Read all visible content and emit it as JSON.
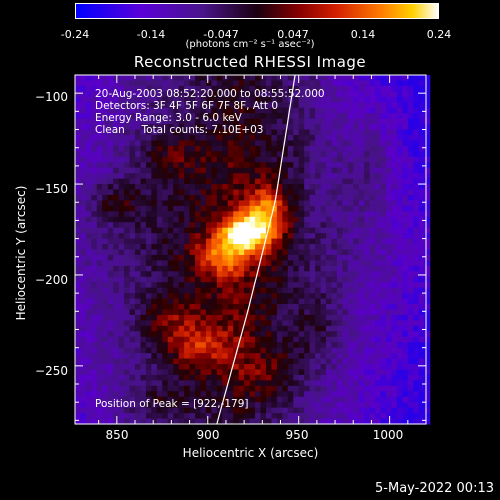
{
  "colorbar": {
    "tick_labels": [
      "-0.24",
      "-0.14",
      "-0.047",
      "0.047",
      "0.14",
      "0.24"
    ],
    "tick_values": [
      -0.24,
      -0.14,
      -0.047,
      0.047,
      0.14,
      0.24
    ],
    "range": [
      -0.24,
      0.24
    ],
    "units": "(photons cm⁻² s⁻¹ asec⁻²)"
  },
  "chart_data": {
    "type": "heatmap",
    "title": "Reconstructed RHESSI Image",
    "xlabel": "Heliocentric X (arcsec)",
    "ylabel": "Heliocentric Y (arcsec)",
    "xlim": [
      827,
      1020
    ],
    "ylim": [
      -282,
      -90
    ],
    "x_ticks": [
      850,
      900,
      950,
      1000
    ],
    "y_ticks": [
      -100,
      -150,
      -200,
      -250
    ],
    "x_tick_labels": [
      "850",
      "900",
      "950",
      "1000"
    ],
    "y_tick_labels": [
      "−100",
      "−150",
      "−200",
      "−250"
    ],
    "peak": {
      "x": 922,
      "y": -179,
      "value": 0.24
    },
    "limb_points": [
      [
        948,
        -90
      ],
      [
        937,
        -160
      ],
      [
        922,
        -220
      ],
      [
        905,
        -282
      ]
    ],
    "blobs": [
      {
        "x": 921,
        "y": -177,
        "sx": 9,
        "sy": 7,
        "amp": 0.24
      },
      {
        "x": 933,
        "y": -165,
        "sx": 8,
        "sy": 10,
        "amp": 0.15
      },
      {
        "x": 908,
        "y": -190,
        "sx": 10,
        "sy": 8,
        "amp": 0.12
      },
      {
        "x": 850,
        "y": -160,
        "sx": 12,
        "sy": 8,
        "amp": 0.08
      },
      {
        "x": 880,
        "y": -135,
        "sx": 12,
        "sy": 10,
        "amp": 0.06
      },
      {
        "x": 895,
        "y": -240,
        "sx": 14,
        "sy": 10,
        "amp": 0.1
      },
      {
        "x": 878,
        "y": -225,
        "sx": 12,
        "sy": 10,
        "amp": 0.07
      },
      {
        "x": 935,
        "y": -255,
        "sx": 12,
        "sy": 12,
        "amp": 0.07
      },
      {
        "x": 960,
        "y": -230,
        "sx": 10,
        "sy": 14,
        "amp": 0.05
      },
      {
        "x": 990,
        "y": -140,
        "sx": 10,
        "sy": 16,
        "amp": 0.05
      },
      {
        "x": 870,
        "y": -270,
        "sx": 14,
        "sy": 8,
        "amp": 0.06
      }
    ],
    "annotations": {
      "time": "20-Aug-2003 08:52:20.000 to 08:55:52.000",
      "detectors": "Detectors: 3F 4F 5F 6F 7F 8F, Att 0",
      "energy": "Energy Range: 3.0 - 6.0 keV",
      "algorithm": "Clean     Total counts: 7.10E+03",
      "peak_text": "Position of Peak = [922,-179]"
    },
    "colormap": "red-temperature (purple→black→red→yellow→white)"
  },
  "footer": {
    "date": "5-May-2022 00:13"
  }
}
